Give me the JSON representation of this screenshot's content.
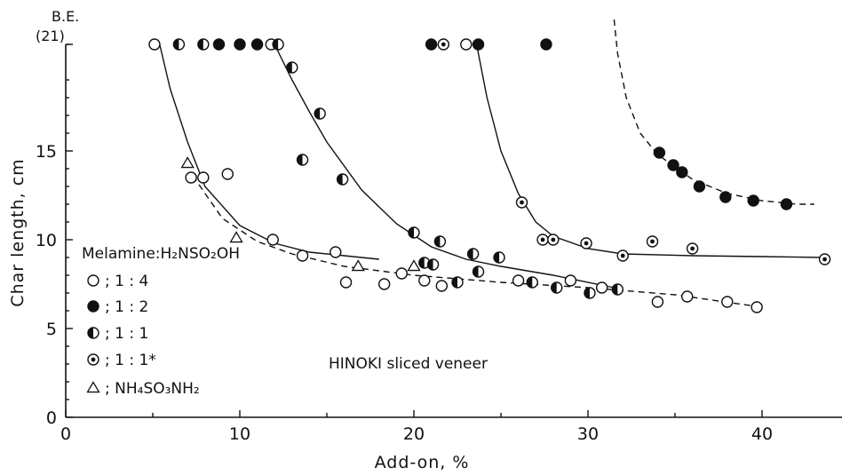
{
  "chart_data": {
    "type": "scatter",
    "xlabel": "Add-on, %",
    "ylabel": "Char length, cm",
    "xlim": [
      0,
      44
    ],
    "ylim": [
      0,
      22
    ],
    "x_ticks": [
      0,
      10,
      20,
      30,
      40
    ],
    "y_ticks": [
      0,
      5,
      10,
      15
    ],
    "be_label": "B.E.",
    "be_sub": "(21)",
    "be_value": 21,
    "legend_title": "Melamine:H₂NSO₂OH",
    "annotation": "HINOKI sliced veneer",
    "grid": false,
    "legend_position": "left",
    "series": [
      {
        "name": "; 1 : 4",
        "marker": "open-circle",
        "points": [
          [
            5.1,
            21
          ],
          [
            11.8,
            21
          ],
          [
            23.0,
            21
          ],
          [
            7.2,
            13.5
          ],
          [
            7.9,
            13.5
          ],
          [
            9.3,
            13.7
          ],
          [
            11.9,
            10.0
          ],
          [
            13.6,
            9.1
          ],
          [
            15.5,
            9.3
          ],
          [
            16.1,
            7.6
          ],
          [
            18.3,
            7.5
          ],
          [
            19.3,
            8.1
          ],
          [
            20.6,
            7.7
          ],
          [
            21.6,
            7.4
          ],
          [
            26.0,
            7.7
          ],
          [
            29.0,
            7.7
          ],
          [
            30.8,
            7.3
          ],
          [
            34.0,
            6.5
          ],
          [
            35.7,
            6.8
          ],
          [
            38.0,
            6.5
          ],
          [
            39.7,
            6.2
          ]
        ]
      },
      {
        "name": "; 1 : 2",
        "marker": "filled-circle",
        "points": [
          [
            8.8,
            21
          ],
          [
            10.0,
            21
          ],
          [
            11.0,
            21
          ],
          [
            21.0,
            21
          ],
          [
            23.7,
            21
          ],
          [
            27.6,
            21
          ],
          [
            34.1,
            14.9
          ],
          [
            34.9,
            14.2
          ],
          [
            35.4,
            13.8
          ],
          [
            36.4,
            13.0
          ],
          [
            37.9,
            12.4
          ],
          [
            39.5,
            12.2
          ],
          [
            41.4,
            12.0
          ]
        ]
      },
      {
        "name": "; 1 : 1",
        "marker": "half-circle",
        "points": [
          [
            6.5,
            21
          ],
          [
            7.9,
            21
          ],
          [
            12.2,
            21
          ],
          [
            13.0,
            19.7
          ],
          [
            14.6,
            17.1
          ],
          [
            13.6,
            14.5
          ],
          [
            15.9,
            13.4
          ],
          [
            20.0,
            10.4
          ],
          [
            21.5,
            9.9
          ],
          [
            20.6,
            8.7
          ],
          [
            21.1,
            8.6
          ],
          [
            23.4,
            9.2
          ],
          [
            24.9,
            9.0
          ],
          [
            23.7,
            8.2
          ],
          [
            22.5,
            7.6
          ],
          [
            26.8,
            7.6
          ],
          [
            28.2,
            7.3
          ],
          [
            30.1,
            7.0
          ],
          [
            31.7,
            7.2
          ]
        ]
      },
      {
        "name": "; 1 : 1*",
        "marker": "dot-circle",
        "points": [
          [
            21.7,
            21
          ],
          [
            26.2,
            12.1
          ],
          [
            27.4,
            10.0
          ],
          [
            28.0,
            10.0
          ],
          [
            29.9,
            9.8
          ],
          [
            32.0,
            9.1
          ],
          [
            33.7,
            9.9
          ],
          [
            36.0,
            9.5
          ],
          [
            43.6,
            8.9
          ]
        ]
      },
      {
        "name": "; NH₄SO₃NH₂",
        "marker": "triangle",
        "points": [
          [
            7.0,
            14.3
          ],
          [
            9.8,
            10.1
          ],
          [
            16.8,
            8.5
          ],
          [
            20.0,
            8.5
          ]
        ]
      }
    ],
    "curves": [
      {
        "style": "solid",
        "points": [
          [
            5.4,
            21
          ],
          [
            6.0,
            18.5
          ],
          [
            7.0,
            15.5
          ],
          [
            8.0,
            13.0
          ],
          [
            10.0,
            10.8
          ],
          [
            12.0,
            9.8
          ],
          [
            14.0,
            9.3
          ],
          [
            16.0,
            9.1
          ],
          [
            18.0,
            8.9
          ]
        ]
      },
      {
        "style": "dashed",
        "points": [
          [
            7.3,
            13.6
          ],
          [
            9.0,
            11.2
          ],
          [
            11.0,
            9.9
          ],
          [
            13.0,
            9.2
          ],
          [
            16.0,
            8.5
          ],
          [
            20.0,
            8.0
          ],
          [
            25.0,
            7.6
          ],
          [
            30.0,
            7.3
          ],
          [
            35.0,
            6.9
          ],
          [
            40.0,
            6.2
          ]
        ]
      },
      {
        "style": "solid",
        "points": [
          [
            12.0,
            21
          ],
          [
            13.0,
            19.0
          ],
          [
            14.0,
            17.2
          ],
          [
            15.0,
            15.5
          ],
          [
            17.0,
            12.8
          ],
          [
            19.0,
            10.9
          ],
          [
            21.0,
            9.6
          ],
          [
            23.0,
            8.9
          ],
          [
            25.0,
            8.5
          ],
          [
            28.0,
            8.0
          ],
          [
            31.0,
            7.4
          ],
          [
            32.0,
            7.2
          ]
        ]
      },
      {
        "style": "solid",
        "points": [
          [
            23.6,
            21
          ],
          [
            24.2,
            18.0
          ],
          [
            25.0,
            15.0
          ],
          [
            26.0,
            12.6
          ],
          [
            27.0,
            11.0
          ],
          [
            28.0,
            10.2
          ],
          [
            30.0,
            9.5
          ],
          [
            32.0,
            9.2
          ],
          [
            36.0,
            9.1
          ],
          [
            40.0,
            9.05
          ],
          [
            43.6,
            9.0
          ]
        ]
      },
      {
        "style": "dashed",
        "points": [
          [
            31.5,
            22.4
          ],
          [
            31.7,
            20.5
          ],
          [
            32.2,
            18.0
          ],
          [
            33.0,
            16.0
          ],
          [
            34.0,
            14.8
          ],
          [
            35.0,
            14.1
          ],
          [
            36.0,
            13.4
          ],
          [
            38.0,
            12.6
          ],
          [
            40.0,
            12.2
          ],
          [
            42.0,
            12.0
          ],
          [
            43.0,
            12.0
          ]
        ]
      }
    ]
  }
}
